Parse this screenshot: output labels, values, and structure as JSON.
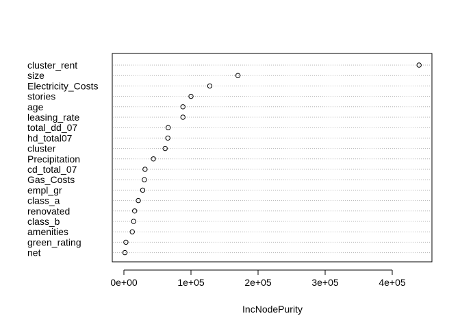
{
  "chart_data": {
    "type": "scatter",
    "style": "dotchart",
    "xlabel": "IncNodePurity",
    "ylabel": "",
    "title": "",
    "xlim": [
      -5000,
      450000
    ],
    "xticks": [
      0,
      100000,
      200000,
      300000,
      400000
    ],
    "xtick_labels": [
      "0e+00",
      "1e+05",
      "2e+05",
      "3e+05",
      "4e+05"
    ],
    "grid": "horizontal dotted",
    "marker": "open circle",
    "categories": [
      "cluster_rent",
      "size",
      "Electricity_Costs",
      "stories",
      "age",
      "leasing_rate",
      "total_dd_07",
      "hd_total07",
      "cluster",
      "Precipitation",
      "cd_total_07",
      "Gas_Costs",
      "empl_gr",
      "class_a",
      "renovated",
      "class_b",
      "amenities",
      "green_rating",
      "net"
    ],
    "values": [
      440000,
      170000,
      128000,
      100000,
      88000,
      88000,
      66000,
      65500,
      61500,
      44000,
      31500,
      30500,
      28000,
      21500,
      16000,
      14500,
      12500,
      3000,
      1500
    ]
  }
}
